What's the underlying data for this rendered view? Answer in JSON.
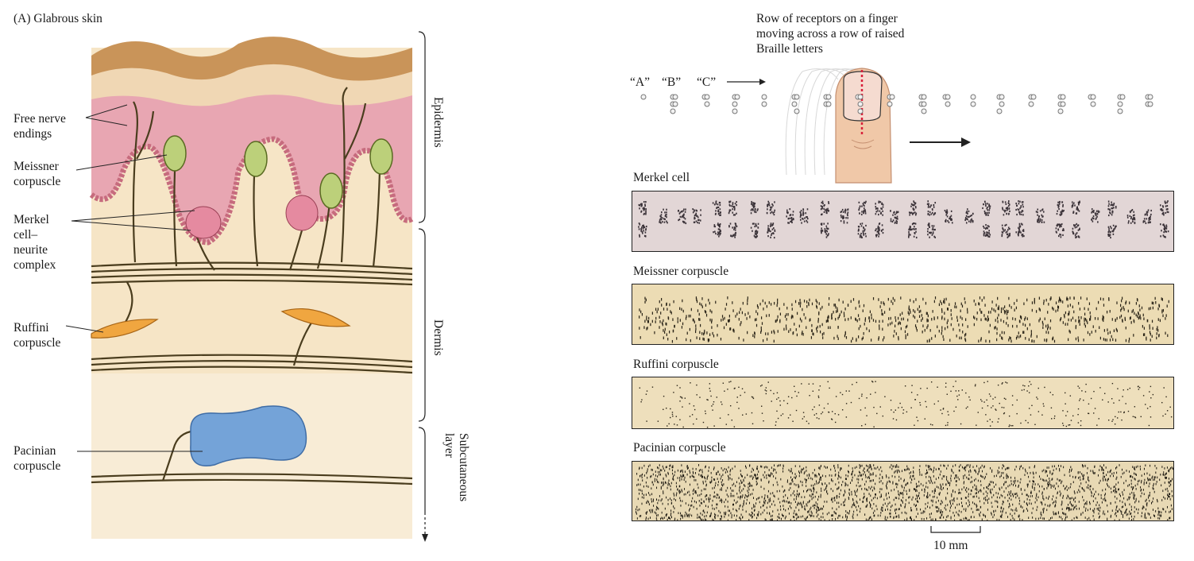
{
  "panel_a": {
    "title": "(A) Glabrous skin",
    "labels": {
      "free_nerve": "Free nerve\nendings",
      "meissner": "Meissner\ncorpuscle",
      "merkel": "Merkel\ncell–\nneurite\ncomplex",
      "ruffini": "Ruffini\ncorpuscle",
      "pacinian": "Pacinian\ncorpuscle"
    },
    "layers": {
      "epidermis": "Epidermis",
      "dermis": "Dermis",
      "subcutaneous": "Subcutaneous\nlayer"
    }
  },
  "panel_b": {
    "finger_caption": "Row of receptors on a finger\nmoving across a row of raised\nBraille letters",
    "letters": [
      "“A”",
      "“B”",
      "“C”"
    ],
    "strips": [
      {
        "title": "Merkel cell",
        "pattern": "merkel",
        "fill": "#e2d6d6"
      },
      {
        "title": "Meissner corpuscle",
        "pattern": "meissner",
        "fill": "#ecdcb4"
      },
      {
        "title": "Ruffini corpuscle",
        "pattern": "ruffini",
        "fill": "#eedfbc"
      },
      {
        "title": "Pacinian corpuscle",
        "pattern": "pacinian",
        "fill": "#e8d9b4"
      }
    ],
    "scale_label": "10 mm"
  },
  "colors": {
    "epidermis_pink": "#e8a8b4",
    "skin_top": "#c9955e",
    "dermis": "#f5e3c4",
    "nerve": "#4a3d1e",
    "meissner_green": "#b9cf7a",
    "ruffini_orange": "#f0a640",
    "pacinian_blue": "#6f9fd6",
    "finger_red_line": "#d8203a"
  }
}
